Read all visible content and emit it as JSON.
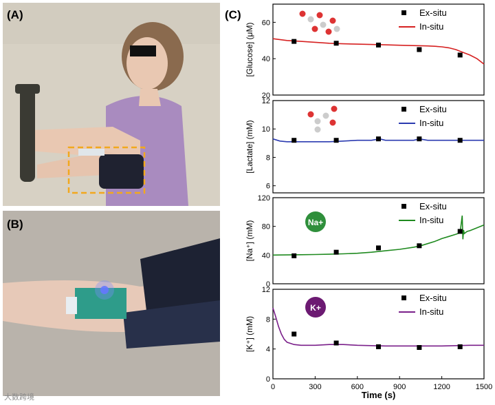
{
  "panels": {
    "a": "(A)",
    "b": "(B)",
    "c": "(C)"
  },
  "watermark": "大数跨境",
  "colors": {
    "ex_situ": "#000000",
    "glucose": "#d62020",
    "lactate": "#2a3ab0",
    "sodium": "#1f8a1f",
    "potassium": "#7a1f8a",
    "highlight_box": "#f2a81d"
  },
  "chart_data": [
    {
      "type": "line",
      "ylabel": "[Glucose] (μM)",
      "ylim": [
        20,
        70
      ],
      "yticks": [
        20,
        40,
        60
      ],
      "xlim": [
        0,
        1500
      ],
      "legend_position": "top-right",
      "series": [
        {
          "name": "Ex-situ",
          "marker": "square",
          "x": [
            150,
            450,
            750,
            1040,
            1330
          ],
          "y": [
            49.5,
            48.5,
            47.5,
            45,
            42
          ]
        },
        {
          "name": "In-situ",
          "x": [
            0,
            100,
            200,
            300,
            400,
            500,
            600,
            700,
            800,
            900,
            1000,
            1100,
            1150,
            1200,
            1250,
            1300,
            1350,
            1400,
            1450,
            1500
          ],
          "y": [
            51,
            50,
            49.5,
            49,
            48.5,
            48.2,
            48,
            47.8,
            47.6,
            47.4,
            47.2,
            47,
            46.8,
            46.5,
            46,
            45,
            43.5,
            42,
            40,
            37
          ]
        }
      ]
    },
    {
      "type": "line",
      "ylabel": "[Lactate] (mM)",
      "ylim": [
        5.5,
        12
      ],
      "yticks": [
        6,
        8,
        10,
        12
      ],
      "xlim": [
        0,
        1500
      ],
      "legend_position": "top-right",
      "series": [
        {
          "name": "Ex-situ",
          "marker": "square",
          "x": [
            150,
            450,
            750,
            1040,
            1330
          ],
          "y": [
            9.2,
            9.2,
            9.3,
            9.3,
            9.2
          ]
        },
        {
          "name": "In-situ",
          "x": [
            0,
            50,
            100,
            200,
            300,
            400,
            500,
            600,
            700,
            760,
            800,
            900,
            1000,
            1040,
            1100,
            1200,
            1300,
            1400,
            1500
          ],
          "y": [
            9.3,
            9.15,
            9.1,
            9.1,
            9.1,
            9.1,
            9.15,
            9.2,
            9.2,
            9.3,
            9.2,
            9.2,
            9.2,
            9.3,
            9.2,
            9.2,
            9.2,
            9.2,
            9.2
          ]
        }
      ]
    },
    {
      "type": "line",
      "ylabel": "[Na⁺] (mM)",
      "ylim": [
        0,
        120
      ],
      "yticks": [
        0,
        40,
        80,
        120
      ],
      "xlim": [
        0,
        1500
      ],
      "legend_position": "top-right",
      "series": [
        {
          "name": "Ex-situ",
          "marker": "square",
          "x": [
            150,
            450,
            750,
            1040,
            1330
          ],
          "y": [
            39,
            44,
            50,
            53,
            73
          ]
        },
        {
          "name": "In-situ",
          "x": [
            0,
            100,
            200,
            300,
            400,
            500,
            600,
            700,
            800,
            900,
            1000,
            1050,
            1100,
            1150,
            1200,
            1250,
            1300,
            1330,
            1345,
            1350,
            1355,
            1360,
            1380,
            1400,
            1450,
            1500
          ],
          "y": [
            40,
            40.2,
            40.5,
            40.8,
            41.2,
            41.8,
            42.5,
            44,
            46,
            48,
            51,
            53,
            56,
            59,
            63,
            66,
            69,
            71,
            95,
            62,
            75,
            70,
            73,
            74,
            78,
            82
          ]
        }
      ]
    },
    {
      "type": "line",
      "ylabel": "[K⁺] (mM)",
      "ylim": [
        0,
        12
      ],
      "yticks": [
        0,
        4,
        8,
        12
      ],
      "xlim": [
        0,
        1500
      ],
      "xticks": [
        0,
        300,
        600,
        900,
        1200,
        1500
      ],
      "xlabel": "Time (s)",
      "legend_position": "top-right",
      "series": [
        {
          "name": "Ex-situ",
          "marker": "square",
          "x": [
            150,
            450,
            750,
            1040,
            1330
          ],
          "y": [
            6,
            4.8,
            4.3,
            4.2,
            4.3
          ]
        },
        {
          "name": "In-situ",
          "x": [
            0,
            20,
            40,
            60,
            80,
            100,
            150,
            200,
            300,
            400,
            500,
            600,
            800,
            1000,
            1200,
            1400,
            1500
          ],
          "y": [
            9.5,
            8.3,
            7,
            6,
            5.3,
            4.9,
            4.6,
            4.5,
            4.5,
            4.6,
            4.6,
            4.5,
            4.4,
            4.4,
            4.4,
            4.5,
            4.5
          ]
        }
      ]
    }
  ]
}
